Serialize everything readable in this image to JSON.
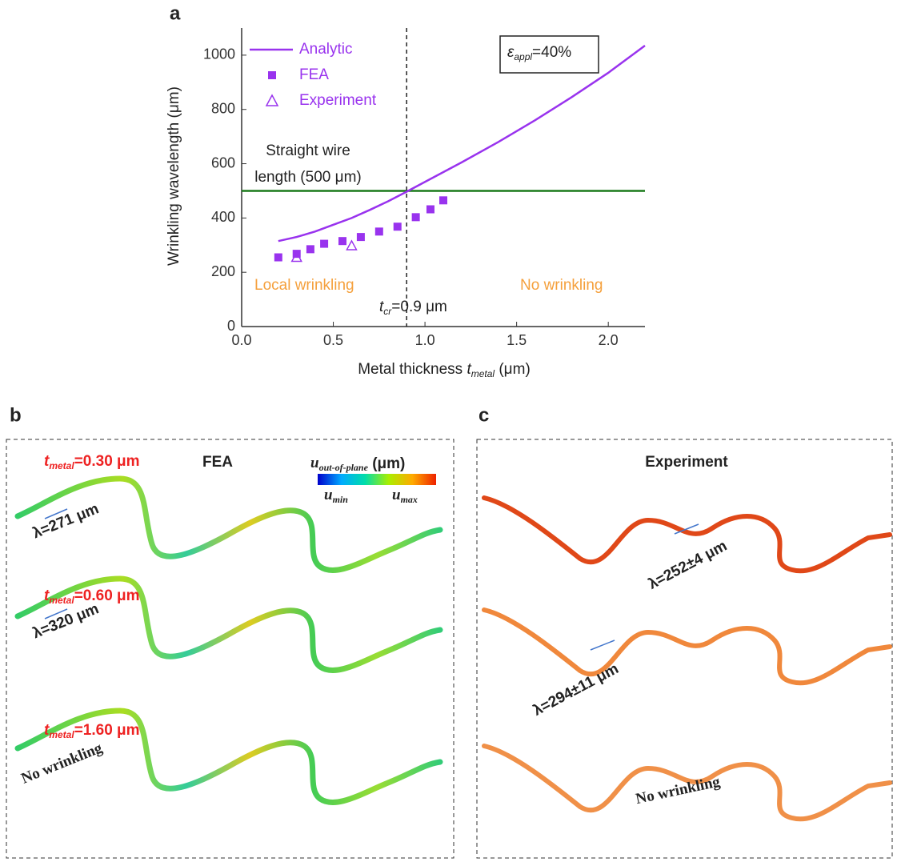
{
  "chart_data": {
    "type": "line",
    "label": "a",
    "xlabel": [
      "Metal thickness ",
      "t",
      "metal",
      " (μm)"
    ],
    "ylabel": "Wrinkling wavelength (μm)",
    "xlim": [
      0,
      2.2
    ],
    "ylim": [
      0,
      1100
    ],
    "xticks": [
      {
        "value": 0,
        "label": "0.0"
      },
      {
        "value": 0.5,
        "label": "0.5"
      },
      {
        "value": 1,
        "label": "1.0"
      },
      {
        "value": 1.5,
        "label": "1.5"
      },
      {
        "value": 2,
        "label": "2.0"
      }
    ],
    "yticks": [
      0,
      200,
      400,
      600,
      800,
      1000
    ],
    "legend": "upper left",
    "series": [
      {
        "name": "Analytic",
        "color": "#9933ee",
        "marker": "line",
        "x": [
          0.2,
          0.3,
          0.4,
          0.5,
          0.6,
          0.7,
          0.8,
          0.9,
          1.0,
          1.2,
          1.4,
          1.6,
          1.8,
          2.0,
          2.2
        ],
        "values": [
          315,
          330,
          350,
          375,
          400,
          430,
          462,
          497,
          533,
          605,
          680,
          760,
          845,
          935,
          1035
        ]
      },
      {
        "name": "FEA",
        "color": "#9933ee",
        "marker": "square",
        "x": [
          0.2,
          0.3,
          0.375,
          0.45,
          0.55,
          0.65,
          0.75,
          0.85,
          0.95,
          1.03,
          1.1
        ],
        "values": [
          255,
          268,
          285,
          305,
          315,
          330,
          350,
          368,
          403,
          432,
          465
        ]
      },
      {
        "name": "Experiment",
        "color": "#9933ee",
        "marker": "triangle",
        "x": [
          0.3,
          0.6
        ],
        "values": [
          255,
          298
        ]
      }
    ],
    "hline": {
      "value": 500,
      "color": "#1a7a1a"
    },
    "vline": {
      "value": 0.9
    },
    "strain_box": [
      "ε",
      "appl",
      "=40%"
    ],
    "annotations": {
      "wire": [
        "Straight wire",
        "length (500 μm)"
      ],
      "left": "Local wrinkling",
      "right": "No wrinkling",
      "tcr": [
        "t",
        "cr",
        "=0.9 μm"
      ]
    }
  },
  "panel_b": {
    "label": "b",
    "title": "FEA",
    "colorbar": {
      "u": "u",
      "sub": "out-of-plane",
      "unit": " (μm)",
      "min": [
        "u",
        "min"
      ],
      "max": [
        "u",
        "max"
      ]
    },
    "rows": [
      {
        "t": "t",
        "sub": "metal",
        "value": "=0.30 μm",
        "lambda": "λ=271 μm"
      },
      {
        "t": "t",
        "sub": "metal",
        "value": "=0.60 μm",
        "lambda": "λ=320 μm"
      },
      {
        "t": "t",
        "sub": "metal",
        "value": "=1.60 μm",
        "note": "No wrinkling"
      }
    ]
  },
  "panel_c": {
    "label": "c",
    "title": "Experiment",
    "rows": [
      {
        "lambda": "λ=252±4 μm"
      },
      {
        "lambda": "λ=294±11 μm"
      },
      {
        "note": "No wrinkling"
      }
    ]
  }
}
